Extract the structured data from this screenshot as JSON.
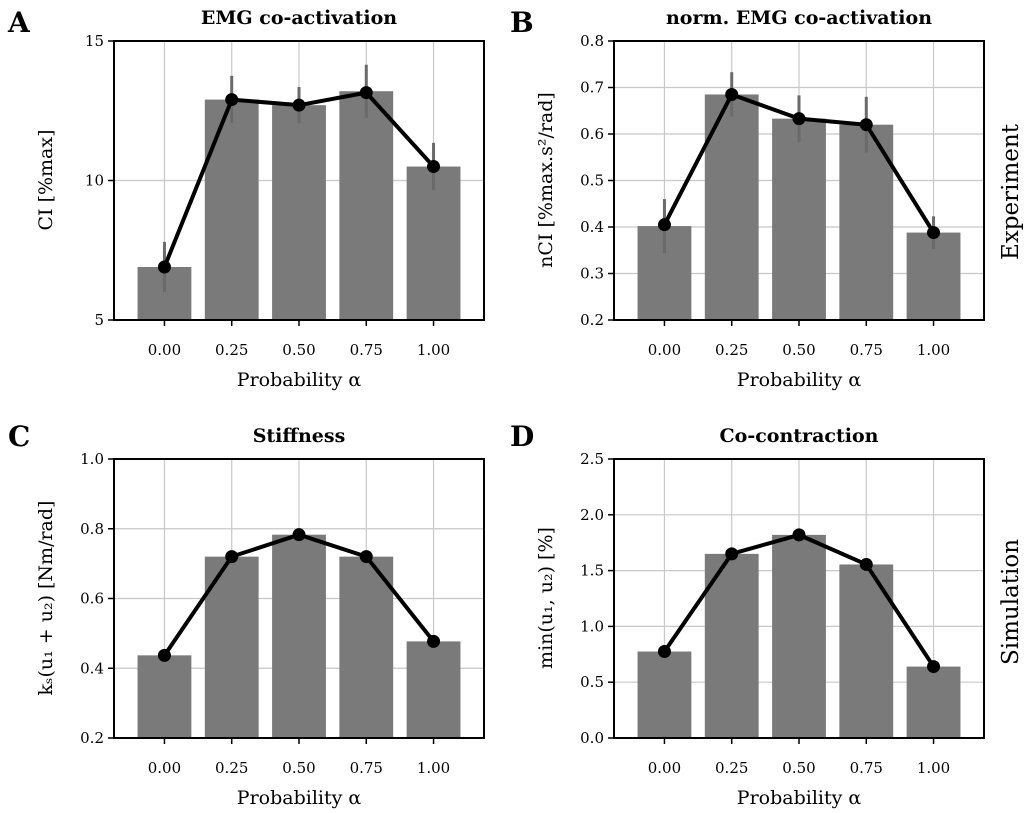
{
  "row_labels": {
    "top": "Experiment",
    "bottom": "Simulation"
  },
  "chart_data": [
    {
      "type": "bar",
      "letter": "A",
      "title": "EMG co-activation",
      "xlabel": "Probability α",
      "ylabel": "CI [%max]",
      "categories": [
        "0.00",
        "0.25",
        "0.50",
        "0.75",
        "1.00"
      ],
      "ylim": [
        5,
        15
      ],
      "yticks": [
        5,
        10,
        15
      ],
      "ytick_labels": [
        "5",
        "10",
        "15"
      ],
      "bar_values": [
        6.9,
        12.9,
        12.7,
        13.2,
        10.5
      ],
      "error_upper": [
        7.8,
        13.75,
        13.35,
        14.15,
        11.35
      ],
      "line_values": [
        6.9,
        12.9,
        12.7,
        13.15,
        10.5
      ],
      "grid": true
    },
    {
      "type": "bar",
      "letter": "B",
      "title": "norm. EMG co-activation",
      "xlabel": "Probability α",
      "ylabel": "nCI [%max.s²/rad]",
      "categories": [
        "0.00",
        "0.25",
        "0.50",
        "0.75",
        "1.00"
      ],
      "ylim": [
        0.2,
        0.8
      ],
      "yticks": [
        0.2,
        0.3,
        0.4,
        0.5,
        0.6,
        0.7,
        0.8
      ],
      "ytick_labels": [
        "0.2",
        "0.3",
        "0.4",
        "0.5",
        "0.6",
        "0.7",
        "0.8"
      ],
      "bar_values": [
        0.402,
        0.685,
        0.633,
        0.62,
        0.388
      ],
      "error_upper": [
        0.46,
        0.733,
        0.683,
        0.68,
        0.423
      ],
      "line_values": [
        0.405,
        0.685,
        0.633,
        0.62,
        0.388
      ],
      "grid": true
    },
    {
      "type": "bar",
      "letter": "C",
      "title": "Stiffness",
      "xlabel": "Probability α",
      "ylabel": "kₛ(u₁ + u₂) [Nm/rad]",
      "categories": [
        "0.00",
        "0.25",
        "0.50",
        "0.75",
        "1.00"
      ],
      "ylim": [
        0.2,
        1.0
      ],
      "yticks": [
        0.2,
        0.4,
        0.6,
        0.8,
        1.0
      ],
      "ytick_labels": [
        "0.2",
        "0.4",
        "0.6",
        "0.8",
        "1.0"
      ],
      "bar_values": [
        0.437,
        0.72,
        0.783,
        0.72,
        0.477
      ],
      "error_upper": null,
      "line_values": [
        0.437,
        0.72,
        0.783,
        0.72,
        0.477
      ],
      "grid": true
    },
    {
      "type": "bar",
      "letter": "D",
      "title": "Co-contraction",
      "xlabel": "Probability α",
      "ylabel": "min(u₁, u₂) [%]",
      "categories": [
        "0.00",
        "0.25",
        "0.50",
        "0.75",
        "1.00"
      ],
      "ylim": [
        0.0,
        2.5
      ],
      "yticks": [
        0.0,
        0.5,
        1.0,
        1.5,
        2.0,
        2.5
      ],
      "ytick_labels": [
        "0.0",
        "0.5",
        "1.0",
        "1.5",
        "2.0",
        "2.5"
      ],
      "bar_values": [
        0.775,
        1.65,
        1.82,
        1.555,
        0.64
      ],
      "error_upper": null,
      "line_values": [
        0.775,
        1.65,
        1.82,
        1.555,
        0.64
      ],
      "grid": true
    }
  ]
}
